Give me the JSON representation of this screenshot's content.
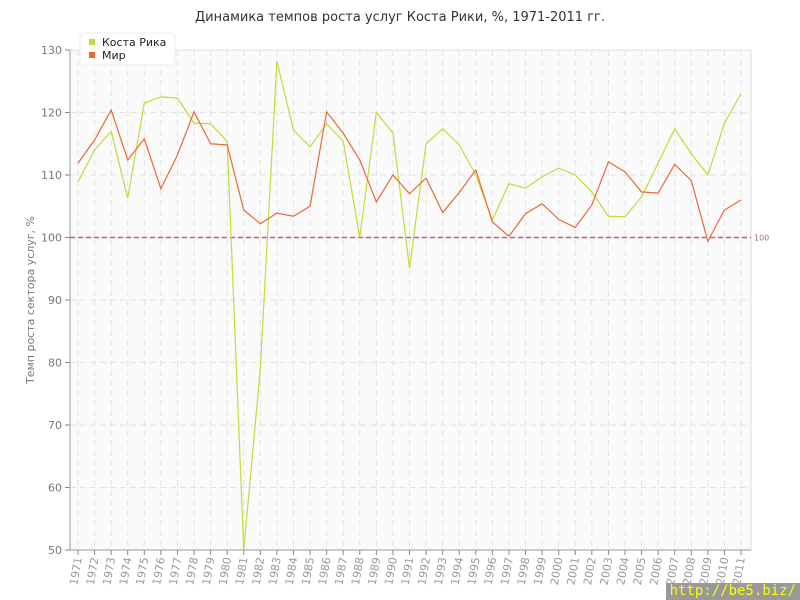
{
  "chart_data": {
    "type": "line",
    "title": "Динамика темпов роста услуг Коста Рики, %, 1971-2011 гг.",
    "xlabel": "",
    "ylabel": "Темп роста сектора услуг, %",
    "ylim": [
      50,
      130
    ],
    "yticks": [
      50,
      60,
      70,
      80,
      90,
      100,
      110,
      120,
      130
    ],
    "grid": true,
    "legend": "top-left",
    "reference_line": {
      "value": 100,
      "label": "100",
      "color": "#b06a7e"
    },
    "x": [
      "1971",
      "1972",
      "1973",
      "1974",
      "1975",
      "1976",
      "1977",
      "1978",
      "1979",
      "1980",
      "1981",
      "1982",
      "1983",
      "1984",
      "1985",
      "1986",
      "1987",
      "1988",
      "1989",
      "1990",
      "1991",
      "1992",
      "1993",
      "1994",
      "1995",
      "1996",
      "1997",
      "1998",
      "1999",
      "2000",
      "2001",
      "2002",
      "2003",
      "2004",
      "2005",
      "2006",
      "2007",
      "2008",
      "2009",
      "2010",
      "2011"
    ],
    "series": [
      {
        "name": "Коста Рика",
        "color": "#bedd3a",
        "values": [
          108.9,
          114,
          117,
          106.3,
          121.5,
          122.5,
          122.3,
          118.3,
          118.2,
          115.4,
          50,
          79,
          128.2,
          117.2,
          114.5,
          118.2,
          115.4,
          100,
          120,
          116.7,
          95.1,
          115,
          117.4,
          114.8,
          110,
          102.8,
          108.6,
          107.9,
          109.7,
          111.1,
          110,
          107.3,
          103.4,
          103.3,
          106.5,
          111.9,
          117.4,
          113.4,
          110,
          118.3,
          123
        ]
      },
      {
        "name": "Мир",
        "color": "#e8693a",
        "values": [
          111.9,
          115.6,
          120.4,
          112.4,
          115.8,
          107.8,
          113.2,
          120.1,
          115,
          114.8,
          104.4,
          102.2,
          103.9,
          103.4,
          105,
          120.1,
          116.7,
          112.4,
          105.7,
          110,
          107,
          109.5,
          104,
          107.2,
          110.8,
          102.5,
          100.2,
          103.8,
          105.4,
          102.9,
          101.6,
          105.2,
          112.1,
          110.5,
          107.3,
          107.1,
          111.7,
          109.1,
          99.4,
          104.4,
          106
        ]
      }
    ]
  },
  "watermark": "http://be5.biz/"
}
